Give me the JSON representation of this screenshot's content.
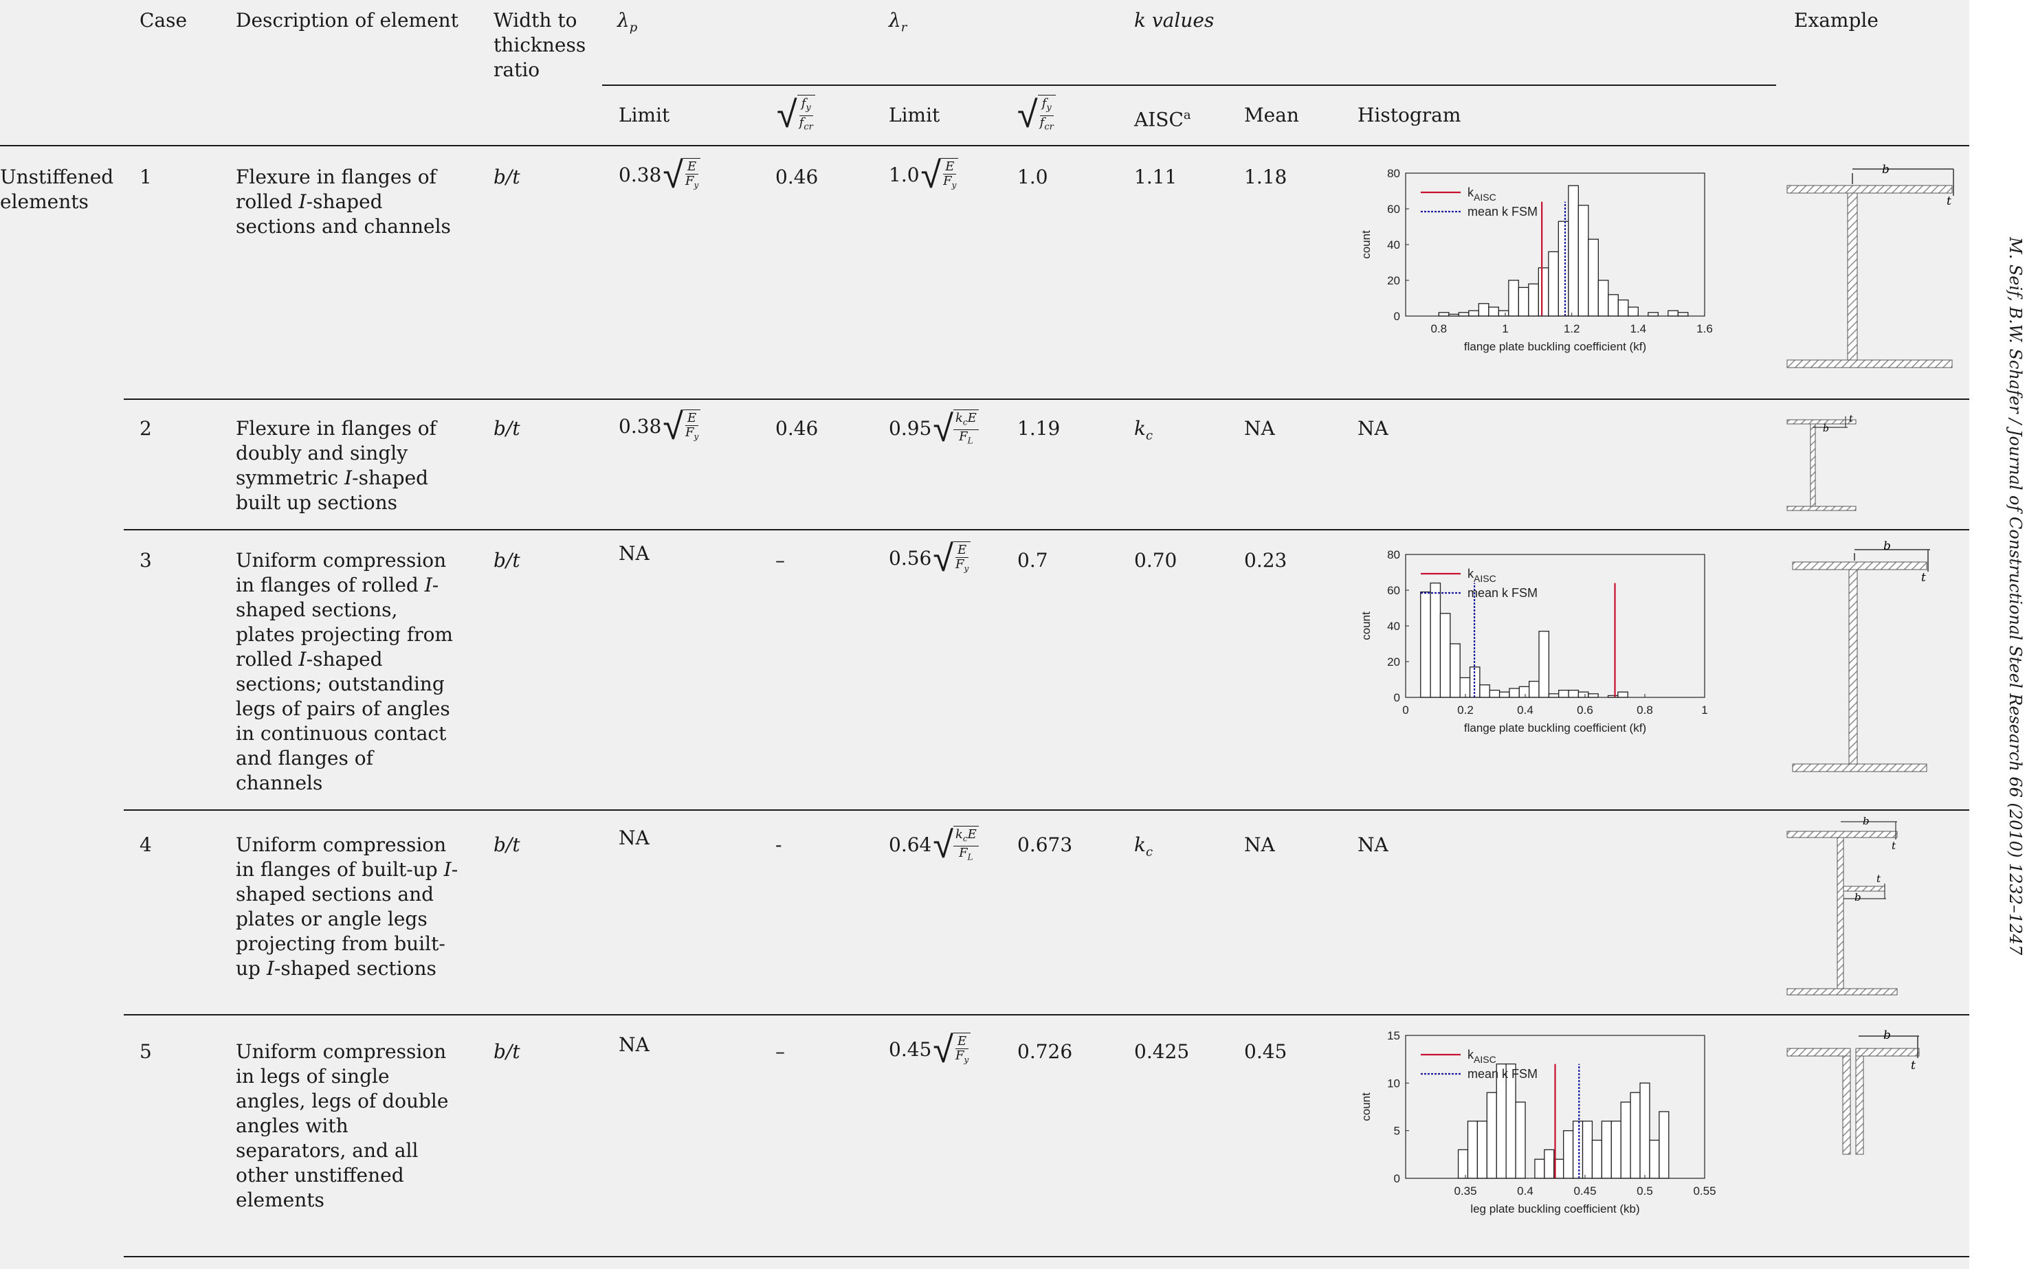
{
  "side_text": "M. Seif, B.W. Schafer / Journal of Constructional Steel Research 66 (2010) 1232–1247",
  "header": {
    "case": "Case",
    "description": "Description of element",
    "ratio": [
      "Width to",
      "thickness",
      "ratio"
    ],
    "lambda_p": "λ",
    "lambda_p_sub": "p",
    "lambda_r": "λ",
    "lambda_r_sub": "r",
    "k_values": "k values",
    "example": "Example",
    "limit": "Limit",
    "limit2": "Limit",
    "aisc": "AISC",
    "aisc_sup": "a",
    "mean": "Mean",
    "histogram": "Histogram",
    "fy": "f",
    "fy_sub": "y",
    "fcr": "f",
    "fcr_sub": "cr"
  },
  "group_label": [
    "Unstiffened",
    "elements"
  ],
  "rows": [
    {
      "case": "1",
      "description": "Flexure in flanges of rolled I-shaped sections and channels",
      "ratio": "b/t",
      "lp_coef": "0.38",
      "lp_num": "E",
      "lp_den": "F",
      "lp_den_sub": "y",
      "lp_sqrt": "0.46",
      "lr_coef": "1.0",
      "lr_num": "E",
      "lr_den": "F",
      "lr_den_sub": "y",
      "lr_sqrt": "1.0",
      "aisc": "1.11",
      "mean": "1.18",
      "histogram": ""
    },
    {
      "case": "2",
      "description": "Flexure in flanges of doubly and singly symmetric I-shaped built up sections",
      "ratio": "b/t",
      "lp_coef": "0.38",
      "lp_num": "E",
      "lp_den": "F",
      "lp_den_sub": "y",
      "lp_sqrt": "0.46",
      "lr_coef": "0.95",
      "lr_num": "kcE",
      "lr_den": "F",
      "lr_den_sub": "L",
      "lr_sqrt": "1.19",
      "aisc": "k",
      "aisc_sub": "c",
      "mean": "NA",
      "histogram": "NA"
    },
    {
      "case": "3",
      "description": "Uniform compression in flanges of rolled I-shaped sections, plates projecting from rolled I-shaped sections; outstanding legs of pairs of angles in continuous contact and flanges of channels",
      "ratio": "b/t",
      "lp_coef": "NA",
      "lp_sqrt": "–",
      "lr_coef": "0.56",
      "lr_num": "E",
      "lr_den": "F",
      "lr_den_sub": "y",
      "lr_sqrt": "0.7",
      "aisc": "0.70",
      "mean": "0.23",
      "histogram": ""
    },
    {
      "case": "4",
      "description": "Uniform compression in flanges of built-up I-shaped sections and plates or angle legs projecting from built-up I-shaped sections",
      "ratio": "b/t",
      "lp_coef": "NA",
      "lp_sqrt": "-",
      "lr_coef": "0.64",
      "lr_num": "kcE",
      "lr_den": "F",
      "lr_den_sub": "L",
      "lr_sqrt": "0.673",
      "aisc": "k",
      "aisc_sub": "c",
      "mean": "NA",
      "histogram": "NA"
    },
    {
      "case": "5",
      "description": "Uniform compression in legs of single angles, legs of double angles with separators, and all other unstiffened elements",
      "ratio": "b/t",
      "lp_coef": "NA",
      "lp_sqrt": "–",
      "lr_coef": "0.45",
      "lr_num": "E",
      "lr_den": "F",
      "lr_den_sub": "y",
      "lr_sqrt": "0.726",
      "aisc": "0.425",
      "mean": "0.45",
      "histogram": ""
    }
  ],
  "chart_data": [
    {
      "type": "bar",
      "xlabel": "flange plate buckling coefficient (kf)",
      "ylabel": "count",
      "xlim": [
        0.7,
        1.6
      ],
      "ylim": [
        0,
        80
      ],
      "xticks": [
        0.8,
        1,
        1.2,
        1.4,
        1.6
      ],
      "xtick_labels": [
        "0.8",
        "1",
        "1.2",
        "1.4",
        "1.6"
      ],
      "yticks": [
        0,
        20,
        40,
        60,
        80
      ],
      "bin_width": 0.03,
      "bins": [
        0.8,
        0.83,
        0.86,
        0.89,
        0.92,
        0.95,
        0.98,
        1.01,
        1.04,
        1.07,
        1.1,
        1.13,
        1.16,
        1.19,
        1.22,
        1.25,
        1.28,
        1.31,
        1.34,
        1.37,
        1.4,
        1.43,
        1.46,
        1.49,
        1.52
      ],
      "values": [
        2,
        1,
        2,
        3,
        7,
        5,
        3,
        20,
        16,
        18,
        27,
        36,
        53,
        73,
        62,
        43,
        20,
        12,
        9,
        5,
        0,
        2,
        0,
        3,
        2
      ],
      "vlines": [
        {
          "name": "kAISC",
          "x": 1.11,
          "color": "#c8102e",
          "style": "solid"
        },
        {
          "name": "mean k FSM",
          "x": 1.18,
          "color": "#1a1aa0",
          "style": "dotted"
        }
      ],
      "legend": [
        {
          "label": "k",
          "sub": "AISC",
          "color": "#c8102e",
          "style": "solid"
        },
        {
          "label": "mean k FSM",
          "sub": "",
          "color": "#1a1aa0",
          "style": "dotted"
        }
      ],
      "legend_position": "top-left"
    },
    {
      "type": "bar",
      "xlabel": "flange plate buckling coefficient (kf)",
      "ylabel": "count",
      "xlim": [
        0,
        1
      ],
      "ylim": [
        0,
        80
      ],
      "xticks": [
        0,
        0.2,
        0.4,
        0.6,
        0.8,
        1
      ],
      "xtick_labels": [
        "0",
        "0.2",
        "0.4",
        "0.6",
        "0.8",
        "1"
      ],
      "yticks": [
        0,
        20,
        40,
        60,
        80
      ],
      "bin_width": 0.033,
      "bins": [
        0.05,
        0.083,
        0.116,
        0.149,
        0.182,
        0.215,
        0.248,
        0.281,
        0.314,
        0.347,
        0.38,
        0.413,
        0.446,
        0.479,
        0.512,
        0.545,
        0.578,
        0.611,
        0.644,
        0.677,
        0.71,
        0.743,
        0.776
      ],
      "values": [
        59,
        64,
        47,
        30,
        11,
        17,
        7,
        4,
        3,
        5,
        6,
        9,
        37,
        2,
        4,
        4,
        3,
        2,
        0,
        1,
        3,
        0,
        0
      ],
      "vlines": [
        {
          "name": "kAISC",
          "x": 0.7,
          "color": "#c8102e",
          "style": "solid"
        },
        {
          "name": "mean k FSM",
          "x": 0.23,
          "color": "#1a1aa0",
          "style": "dotted"
        }
      ],
      "legend": [
        {
          "label": "k",
          "sub": "AISC",
          "color": "#c8102e",
          "style": "solid"
        },
        {
          "label": "mean k FSM",
          "sub": "",
          "color": "#1a1aa0",
          "style": "dotted"
        }
      ],
      "legend_position": "top-left"
    },
    {
      "type": "bar",
      "xlabel": "leg plate buckling coefficient (kb)",
      "ylabel": "count",
      "xlim": [
        0.3,
        0.55
      ],
      "ylim": [
        0,
        15
      ],
      "xticks": [
        0.35,
        0.4,
        0.45,
        0.5,
        0.55
      ],
      "xtick_labels": [
        "0.35",
        "0.4",
        "0.45",
        "0.5",
        "0.55"
      ],
      "yticks": [
        0,
        5,
        10,
        15
      ],
      "bin_width": 0.008,
      "bins": [
        0.344,
        0.352,
        0.36,
        0.368,
        0.376,
        0.384,
        0.392,
        0.4,
        0.408,
        0.416,
        0.424,
        0.432,
        0.44,
        0.448,
        0.456,
        0.464,
        0.472,
        0.48,
        0.488,
        0.496,
        0.504,
        0.512,
        0.52,
        0.528,
        0.536,
        0.544
      ],
      "values": [
        3,
        6,
        6,
        9,
        12,
        12,
        8,
        0,
        2,
        3,
        2,
        5,
        6,
        6,
        4,
        6,
        6,
        8,
        9,
        10,
        4,
        7,
        0,
        0,
        0,
        0
      ],
      "vlines": [
        {
          "name": "kAISC",
          "x": 0.425,
          "color": "#c8102e",
          "style": "solid"
        },
        {
          "name": "mean k FSM",
          "x": 0.445,
          "color": "#1a1aa0",
          "style": "dotted"
        }
      ],
      "legend": [
        {
          "label": "k",
          "sub": "AISC",
          "color": "#c8102e",
          "style": "solid"
        },
        {
          "label": "mean k FSM",
          "sub": "",
          "color": "#1a1aa0",
          "style": "dotted"
        }
      ],
      "legend_position": "top-left"
    }
  ],
  "diagram_labels": {
    "b": "b",
    "t": "t"
  },
  "colors": {
    "page": "#f0f0f0",
    "red": "#c8102e",
    "blue": "#1a1aa0",
    "hatch": "#9a9a9a"
  }
}
